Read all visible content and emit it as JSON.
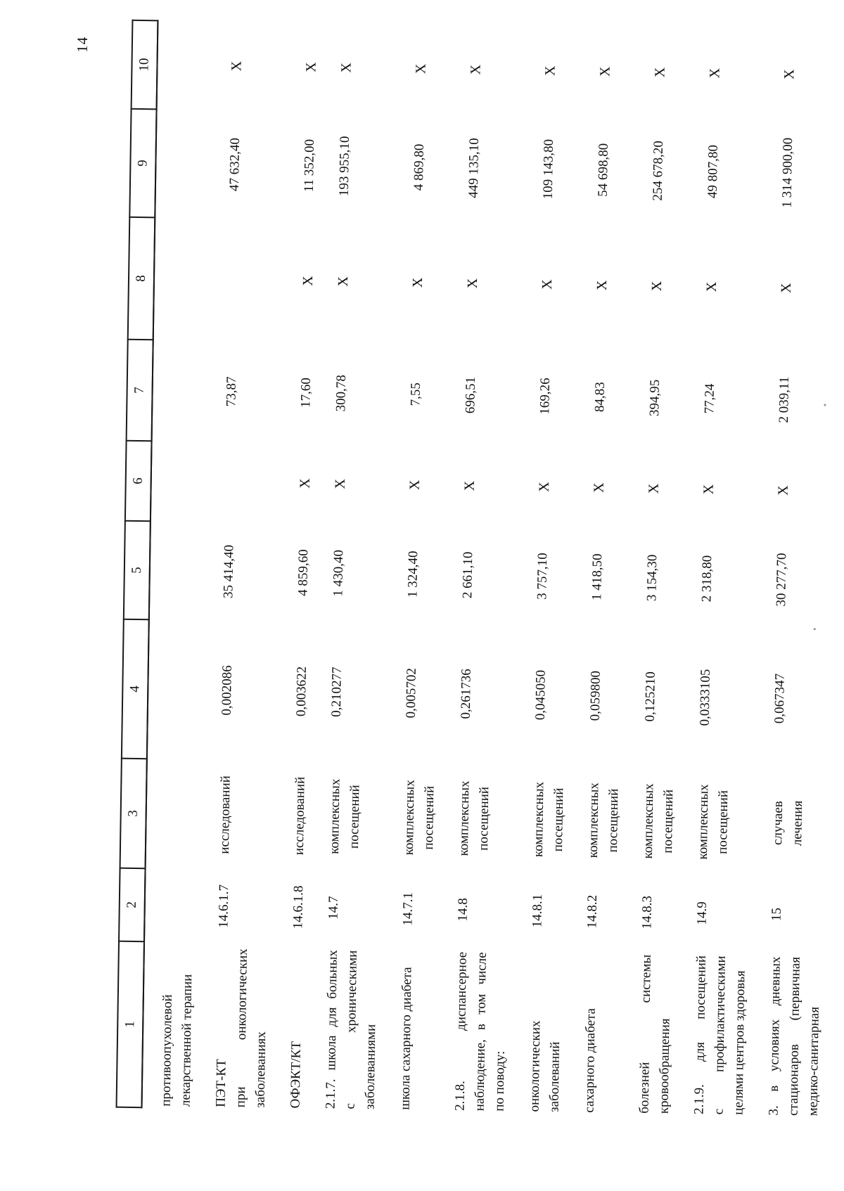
{
  "page": {
    "number": "14"
  },
  "table": {
    "header": [
      "1",
      "2",
      "3",
      "4",
      "5",
      "6",
      "7",
      "8",
      "9",
      "10"
    ],
    "rows": [
      {
        "name_lines": [
          "противоопухолевой",
          "лекарственной терапии"
        ],
        "code": "",
        "unit_lines": [],
        "c4": "",
        "c5": "",
        "c6": "",
        "c7": "",
        "c8": "",
        "c9": "",
        "c10": ""
      },
      {
        "name_lines": [
          "ПЭТ-КТ",
          "при онкологических",
          "заболеваниях"
        ],
        "code": "14.6.1.7",
        "unit_lines": [
          "исследований"
        ],
        "c4": "0,002086",
        "c5": "35 414,40",
        "c6": "",
        "c7": "73,87",
        "c8": "",
        "c9": "47 632,40",
        "c10": "X"
      },
      {
        "name_lines": [
          "ОФЭКТ/КТ"
        ],
        "code": "14.6.1.8",
        "unit_lines": [
          "исследований"
        ],
        "c4": "0,003622",
        "c5": "4 859,60",
        "c6": "X",
        "c7": "17,60",
        "c8": "X",
        "c9": "11 352,00",
        "c10": "X"
      },
      {
        "name_lines": [
          "2.1.7. школа для больных",
          "с хроническими",
          "заболеваниями"
        ],
        "code": "14.7",
        "unit_lines": [
          "комплексных",
          "посещений"
        ],
        "c4": "0,210277",
        "c5": "1 430,40",
        "c6": "X",
        "c7": "300,78",
        "c8": "X",
        "c9": "193 955,10",
        "c10": "X"
      },
      {
        "name_lines": [
          "школа сахарного диабета"
        ],
        "code": "14.7.1",
        "unit_lines": [
          "комплексных",
          "посещений"
        ],
        "c4": "0,005702",
        "c5": "1 324,40",
        "c6": "X",
        "c7": "7,55",
        "c8": "X",
        "c9": "4 869,80",
        "c10": "X"
      },
      {
        "name_lines": [
          "2.1.8. диспансерное",
          "наблюдение, в том числе",
          "по поводу:"
        ],
        "code": "14.8",
        "unit_lines": [
          "комплексных",
          "посещений"
        ],
        "c4": "0,261736",
        "c5": "2 661,10",
        "c6": "X",
        "c7": "696,51",
        "c8": "X",
        "c9": "449 135,10",
        "c10": "X"
      },
      {
        "name_lines": [
          "онкологических",
          "заболеваний"
        ],
        "code": "14.8.1",
        "unit_lines": [
          "комплексных",
          "посещений"
        ],
        "c4": "0,045050",
        "c5": "3 757,10",
        "c6": "X",
        "c7": "169,26",
        "c8": "X",
        "c9": "109 143,80",
        "c10": "X"
      },
      {
        "name_lines": [
          "сахарного диабета"
        ],
        "code": "14.8.2",
        "unit_lines": [
          "комплексных",
          "посещений"
        ],
        "c4": "0,059800",
        "c5": "1 418,50",
        "c6": "X",
        "c7": "84,83",
        "c8": "X",
        "c9": "54 698,80",
        "c10": "X"
      },
      {
        "name_lines": [
          "болезней системы",
          "кровообращения"
        ],
        "code": "14.8.3",
        "unit_lines": [
          "комплексных",
          "посещений"
        ],
        "c4": "0,125210",
        "c5": "3 154,30",
        "c6": "X",
        "c7": "394,95",
        "c8": "X",
        "c9": "254 678,20",
        "c10": "X"
      },
      {
        "name_lines": [
          "2.1.9. для посещений",
          "с профилактическими",
          "целями центров здоровья"
        ],
        "code": "14.9",
        "unit_lines": [
          "комплексных",
          "посещений"
        ],
        "c4": "0,0333105",
        "c5": "2 318,80",
        "c6": "X",
        "c7": "77,24",
        "c8": "X",
        "c9": "49 807,80",
        "c10": "X"
      },
      {
        "name_lines": [
          "3. в условиях дневных",
          "стационаров (первичная",
          "медико-санитарная"
        ],
        "code": "15",
        "unit_lines": [
          "случаев",
          "лечения"
        ],
        "c4": "0,067347",
        "c5": "30 277,70",
        "c6": "X",
        "c7": "2 039,11",
        "c8": "X",
        "c9": "1 314 900,00",
        "c10": "X"
      }
    ]
  }
}
